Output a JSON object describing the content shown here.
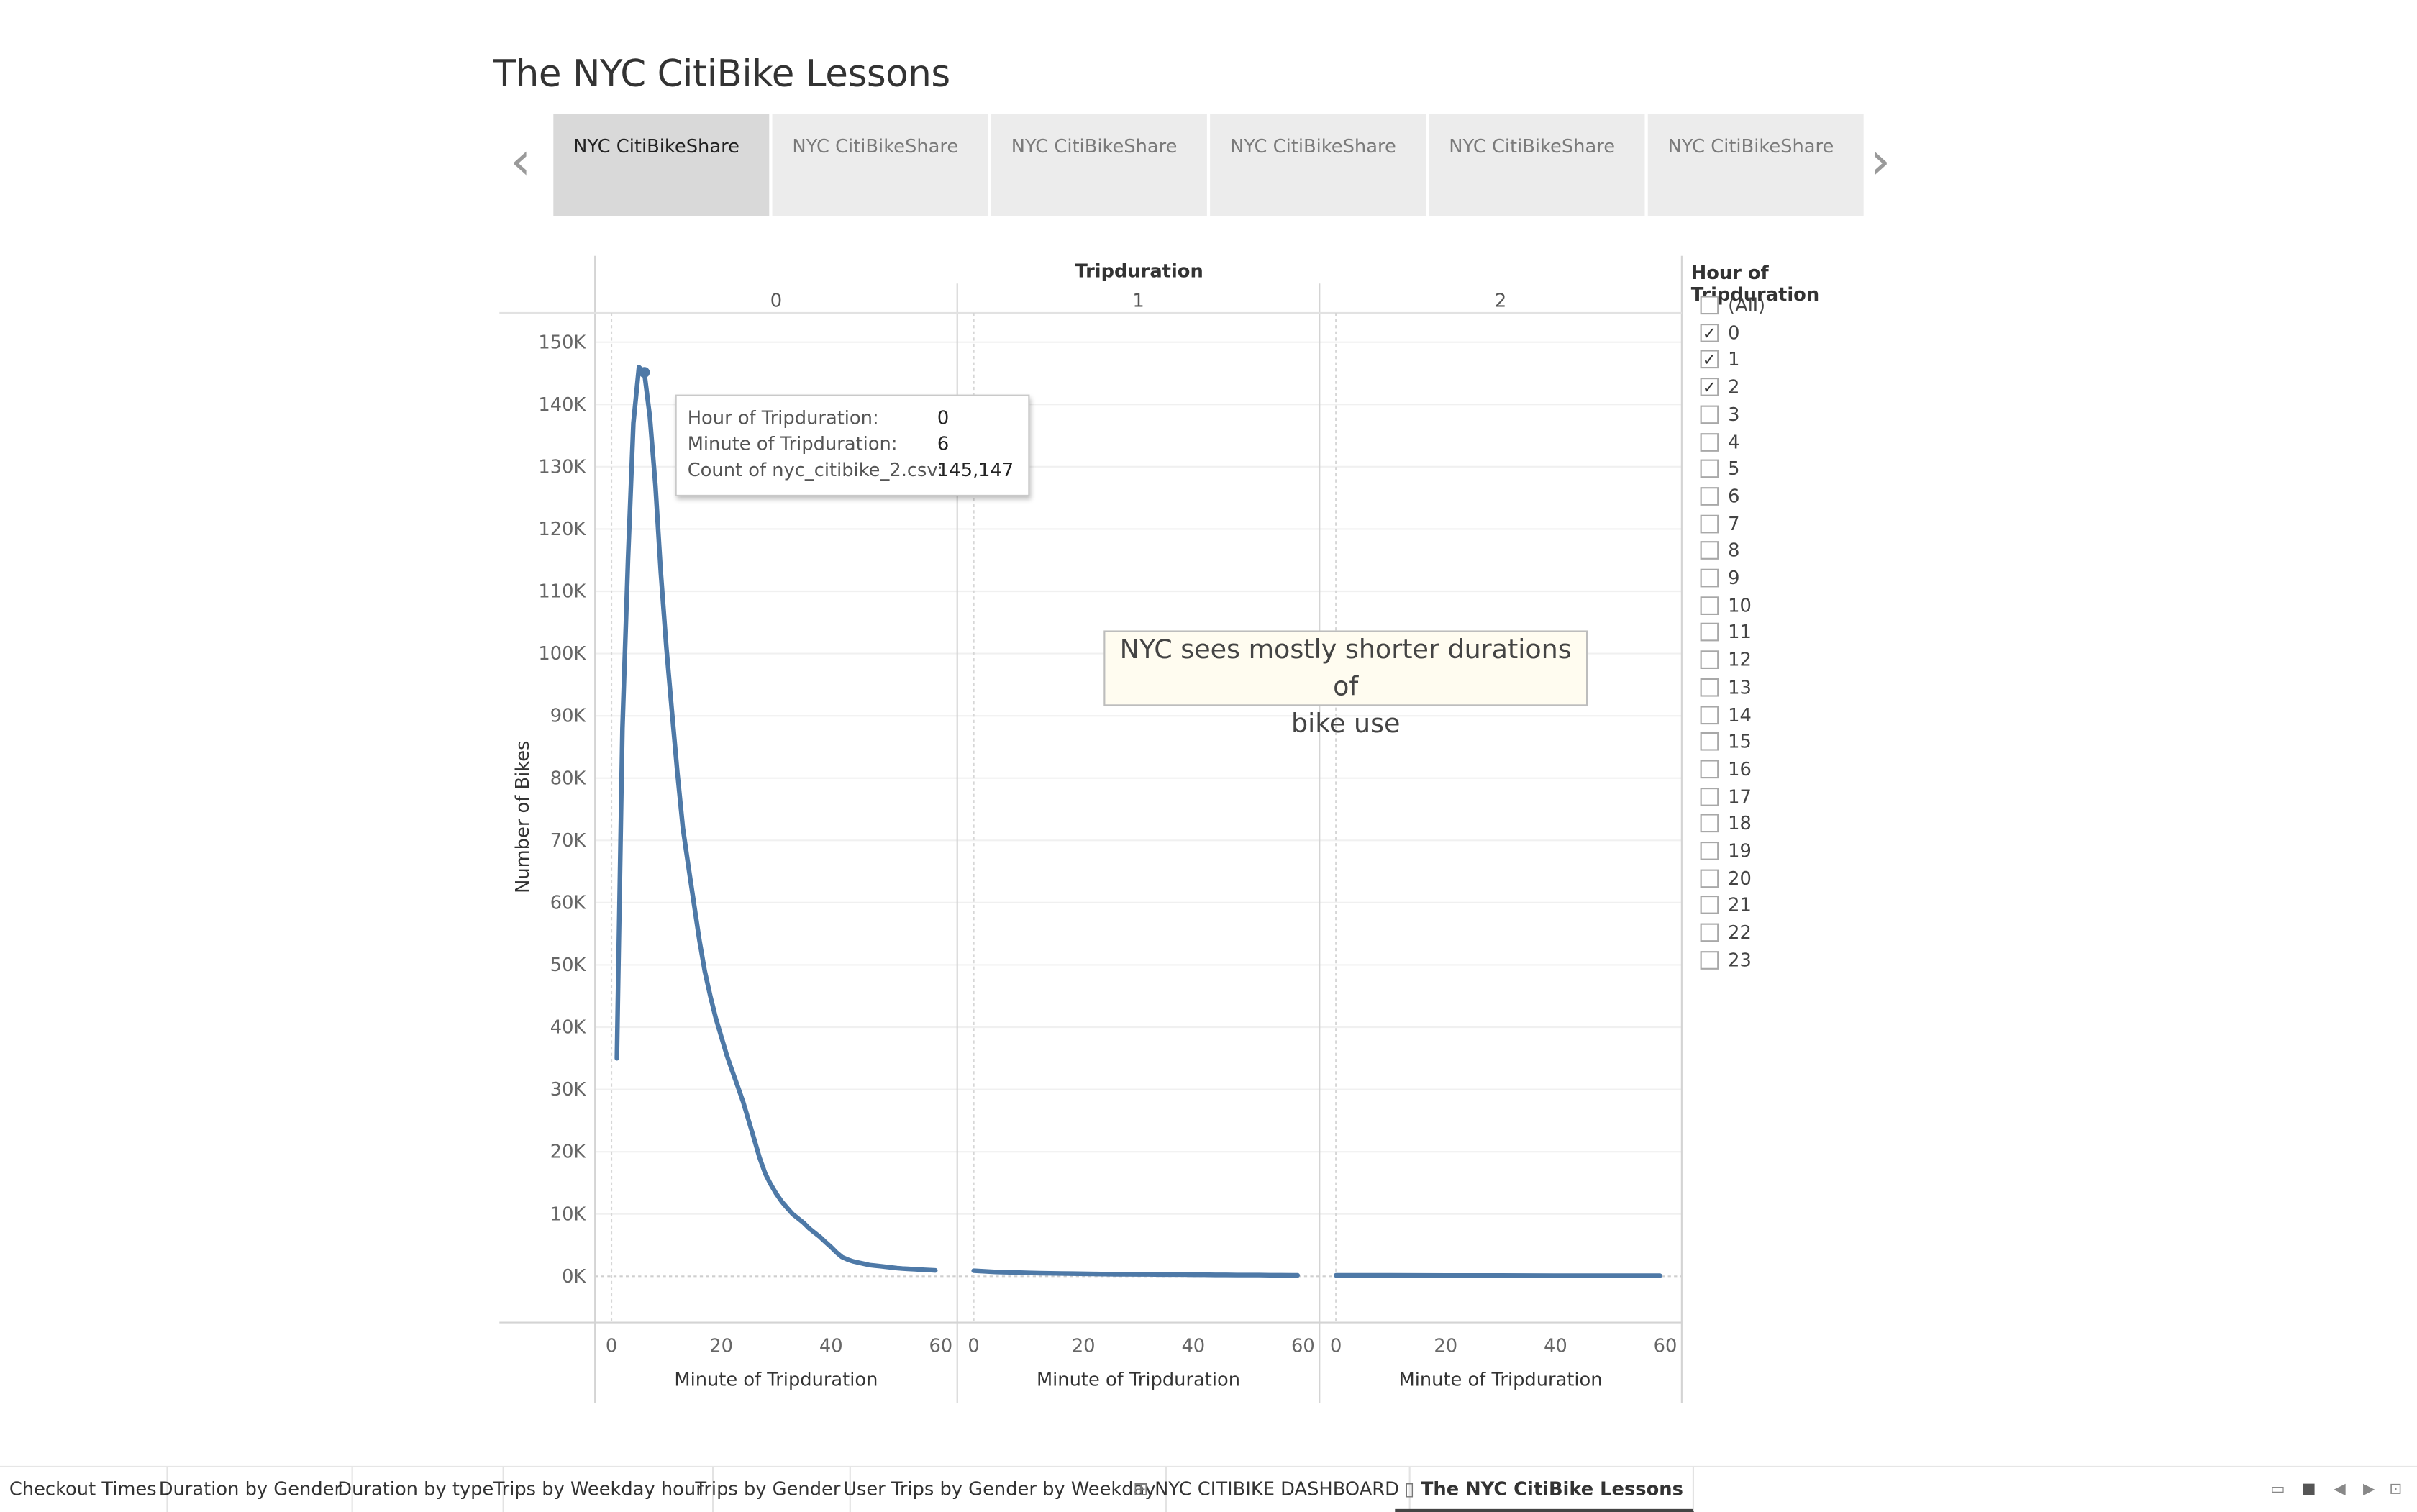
{
  "story": {
    "title": "The NYC CitiBike Lessons",
    "points": [
      {
        "label": "NYC CitiBikeShare",
        "active": true
      },
      {
        "label": "NYC CitiBikeShare",
        "active": false
      },
      {
        "label": "NYC CitiBikeShare",
        "active": false
      },
      {
        "label": "NYC CitiBikeShare",
        "active": false
      },
      {
        "label": "NYC CitiBikeShare",
        "active": false
      },
      {
        "label": "NYC CitiBikeShare",
        "active": false
      }
    ],
    "prev_icon": "chevron-left-icon",
    "next_icon": "chevron-right-icon"
  },
  "chart_data": {
    "type": "line",
    "column_header_title": "Tripduration",
    "panels": [
      "0",
      "1",
      "2"
    ],
    "xlabel": "Minute of Tripduration",
    "ylabel": "Number of Bikes",
    "x_ticks": [
      "0",
      "20",
      "40",
      "60"
    ],
    "xlim": [
      -3,
      63
    ],
    "y_ticks": [
      "0K",
      "10K",
      "20K",
      "30K",
      "40K",
      "50K",
      "60K",
      "70K",
      "80K",
      "90K",
      "100K",
      "110K",
      "120K",
      "130K",
      "140K",
      "150K"
    ],
    "ylim": [
      -7000,
      155000
    ],
    "color": "#4e79a7",
    "series": [
      {
        "panel": "0",
        "x": [
          1,
          2,
          3,
          4,
          5,
          6,
          7,
          8,
          9,
          10,
          11,
          12,
          13,
          14,
          15,
          16,
          17,
          18,
          19,
          20,
          21,
          22,
          23,
          24,
          25,
          26,
          27,
          28,
          29,
          30,
          31,
          32,
          33,
          34,
          35,
          36,
          37,
          38,
          39,
          40,
          41,
          42,
          43,
          44,
          45,
          46,
          47,
          48,
          49,
          50,
          51,
          52,
          53,
          54,
          55,
          56,
          57,
          58,
          59
        ],
        "y": [
          35000,
          88000,
          115000,
          137000,
          146000,
          145147,
          138000,
          127000,
          113000,
          101000,
          91000,
          81000,
          72000,
          66000,
          60000,
          54000,
          49000,
          45000,
          41500,
          38500,
          35500,
          33000,
          30500,
          28000,
          25000,
          22000,
          19000,
          16500,
          14800,
          13300,
          12000,
          11000,
          10000,
          9300,
          8600,
          7700,
          7000,
          6300,
          5500,
          4700,
          3800,
          3100,
          2700,
          2400,
          2200,
          2000,
          1800,
          1700,
          1600,
          1500,
          1400,
          1300,
          1250,
          1200,
          1150,
          1100,
          1050,
          1000,
          950
        ]
      },
      {
        "panel": "1",
        "x": [
          0,
          2,
          4,
          6,
          8,
          10,
          12,
          14,
          16,
          18,
          20,
          22,
          24,
          26,
          28,
          30,
          32,
          34,
          36,
          38,
          40,
          42,
          44,
          46,
          48,
          50,
          52,
          54,
          56,
          58,
          59
        ],
        "y": [
          900,
          800,
          700,
          650,
          600,
          550,
          500,
          470,
          440,
          410,
          390,
          370,
          350,
          330,
          310,
          300,
          290,
          280,
          270,
          260,
          250,
          240,
          230,
          220,
          210,
          200,
          190,
          180,
          170,
          160,
          150
        ]
      },
      {
        "panel": "2",
        "x": [
          0,
          10,
          20,
          30,
          40,
          50,
          59
        ],
        "y": [
          150,
          140,
          130,
          120,
          110,
          100,
          90
        ]
      }
    ]
  },
  "tooltip": {
    "rows": [
      {
        "label": "Hour of Tripduration:",
        "value": "0"
      },
      {
        "label": "Minute of Tripduration:",
        "value": "6"
      },
      {
        "label": "Count of nyc_citibike_2.csv:",
        "value": "145,147"
      }
    ]
  },
  "annotation": {
    "line1": "NYC sees mostly shorter durations of",
    "line2": "bike use"
  },
  "filter": {
    "title": "Hour of Tripduration",
    "items": [
      {
        "label": "(All)",
        "checked": false
      },
      {
        "label": "0",
        "checked": true
      },
      {
        "label": "1",
        "checked": true
      },
      {
        "label": "2",
        "checked": true
      },
      {
        "label": "3",
        "checked": false
      },
      {
        "label": "4",
        "checked": false
      },
      {
        "label": "5",
        "checked": false
      },
      {
        "label": "6",
        "checked": false
      },
      {
        "label": "7",
        "checked": false
      },
      {
        "label": "8",
        "checked": false
      },
      {
        "label": "9",
        "checked": false
      },
      {
        "label": "10",
        "checked": false
      },
      {
        "label": "11",
        "checked": false
      },
      {
        "label": "12",
        "checked": false
      },
      {
        "label": "13",
        "checked": false
      },
      {
        "label": "14",
        "checked": false
      },
      {
        "label": "15",
        "checked": false
      },
      {
        "label": "16",
        "checked": false
      },
      {
        "label": "17",
        "checked": false
      },
      {
        "label": "18",
        "checked": false
      },
      {
        "label": "19",
        "checked": false
      },
      {
        "label": "20",
        "checked": false
      },
      {
        "label": "21",
        "checked": false
      },
      {
        "label": "22",
        "checked": false
      },
      {
        "label": "23",
        "checked": false
      }
    ],
    "check_glyph": "✓"
  },
  "tabs": [
    {
      "label": "Checkout Times",
      "icon": ""
    },
    {
      "label": "Duration by Gender",
      "icon": ""
    },
    {
      "label": "Duration by type",
      "icon": ""
    },
    {
      "label": "Trips by Weekday hour",
      "icon": ""
    },
    {
      "label": "Trips by Gender",
      "icon": ""
    },
    {
      "label": "User Trips by Gender by Weekday",
      "icon": ""
    },
    {
      "label": "NYC CITIBIKE DASHBOARD",
      "icon": "dashboard-grid-icon"
    },
    {
      "label": "The NYC CitiBike Lessons",
      "icon": "story-book-icon",
      "active": true
    }
  ]
}
